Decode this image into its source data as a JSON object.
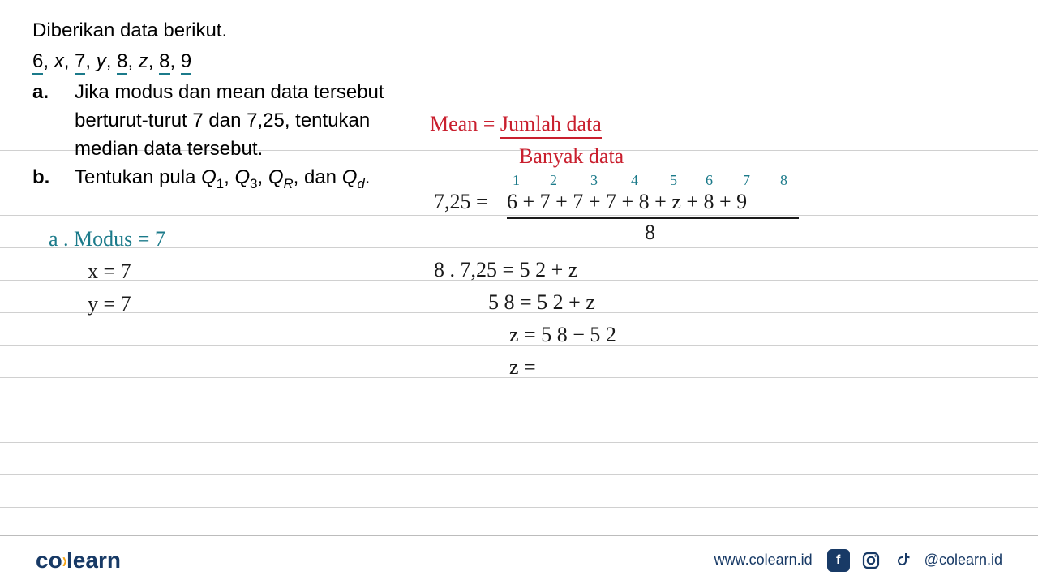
{
  "ruled_line_positions": [
    185,
    265,
    305,
    345,
    385,
    425,
    465,
    505,
    545,
    585,
    625
  ],
  "problem": {
    "title": "Diberikan data berikut.",
    "data_sequence_parts": [
      "6",
      ", ",
      "x",
      ", ",
      "7",
      ", ",
      "y",
      ", ",
      "8",
      ", ",
      "z",
      ", ",
      "8",
      ", ",
      "9"
    ],
    "underlined_idx": [
      0,
      4,
      8,
      12,
      14
    ],
    "a_label": "a.",
    "a_line1": "Jika modus dan mean data tersebut",
    "a_line2": "berturut-turut 7 dan 7,25, tentukan",
    "a_line3": "median data tersebut.",
    "b_label": "b.",
    "b_text_prefix": "Tentukan pula ",
    "b_q1": "Q",
    "b_q1_sub": "1",
    "b_q3": "Q",
    "b_q3_sub": "3",
    "b_qr": "Q",
    "b_qr_sub": "R",
    "b_qd": "Q",
    "b_qd_sub": "d",
    "b_sep": ", ",
    "b_dan": " dan ",
    "b_period": "."
  },
  "handwriting": {
    "mean_label": "Mean = ",
    "mean_top": "Jumlah data",
    "mean_bottom": "Banyak data",
    "modus_line": "a . Modus = 7",
    "x_line": "x = 7",
    "y_line": "y = 7",
    "small_numbers": [
      "1",
      "2",
      "3",
      "4",
      "5",
      "6",
      "7",
      "8"
    ],
    "eq1_left": "7,25 = ",
    "eq1_numer": "6 + 7 + 7 + 7 + 8 + z + 8 + 9",
    "eq1_denom": "8",
    "eq2": "8 . 7,25  =  5 2 + z",
    "eq3": "5 8  =  5 2 + z",
    "eq4": "z  =  5 8 − 5 2",
    "eq5": "z  ="
  },
  "footer": {
    "logo_left": "co",
    "logo_right": "learn",
    "url": "www.colearn.id",
    "handle": "@colearn.id",
    "icons": [
      "f",
      "ig",
      "tk"
    ]
  },
  "colors": {
    "red": "#c91f2e",
    "teal": "#1b7a8a",
    "black": "#1a1a1a",
    "navy": "#183a66",
    "orange": "#f6a516",
    "rule": "#d0d0d0"
  },
  "fonts": {
    "printed_size": 24,
    "hand_size": 26,
    "tiny_size": 18
  }
}
